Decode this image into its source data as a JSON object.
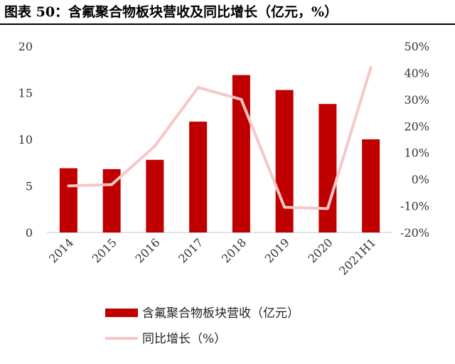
{
  "title": "图表 50：含氟聚合物板块营收及同比增长（亿元，%）",
  "colors": {
    "bar": "#c00000",
    "line": "#f7c6c6",
    "axis": "#d9d9d9"
  },
  "chart_data": {
    "type": "bar",
    "categories": [
      "2014",
      "2015",
      "2016",
      "2017",
      "2018",
      "2019",
      "2020",
      "2021H1"
    ],
    "series": [
      {
        "name": "含氟聚合物板块营收（亿元）",
        "type": "bar",
        "axis": "left",
        "values": [
          6.9,
          6.8,
          7.8,
          11.9,
          16.9,
          15.3,
          13.8,
          10.0
        ]
      },
      {
        "name": "同比增长（%）",
        "type": "line",
        "axis": "right",
        "values": [
          -2.5,
          -2.0,
          12.5,
          34.5,
          30.0,
          -10.5,
          -11.0,
          42.0
        ]
      }
    ],
    "ylim": [
      0,
      20
    ],
    "yticks": [
      "0",
      "5",
      "10",
      "15",
      "20"
    ],
    "y2lim": [
      -20,
      50
    ],
    "y2ticks": [
      "-20%",
      "-10%",
      "0%",
      "10%",
      "20%",
      "30%",
      "40%",
      "50%"
    ],
    "legend_position": "bottom",
    "grid": false
  }
}
